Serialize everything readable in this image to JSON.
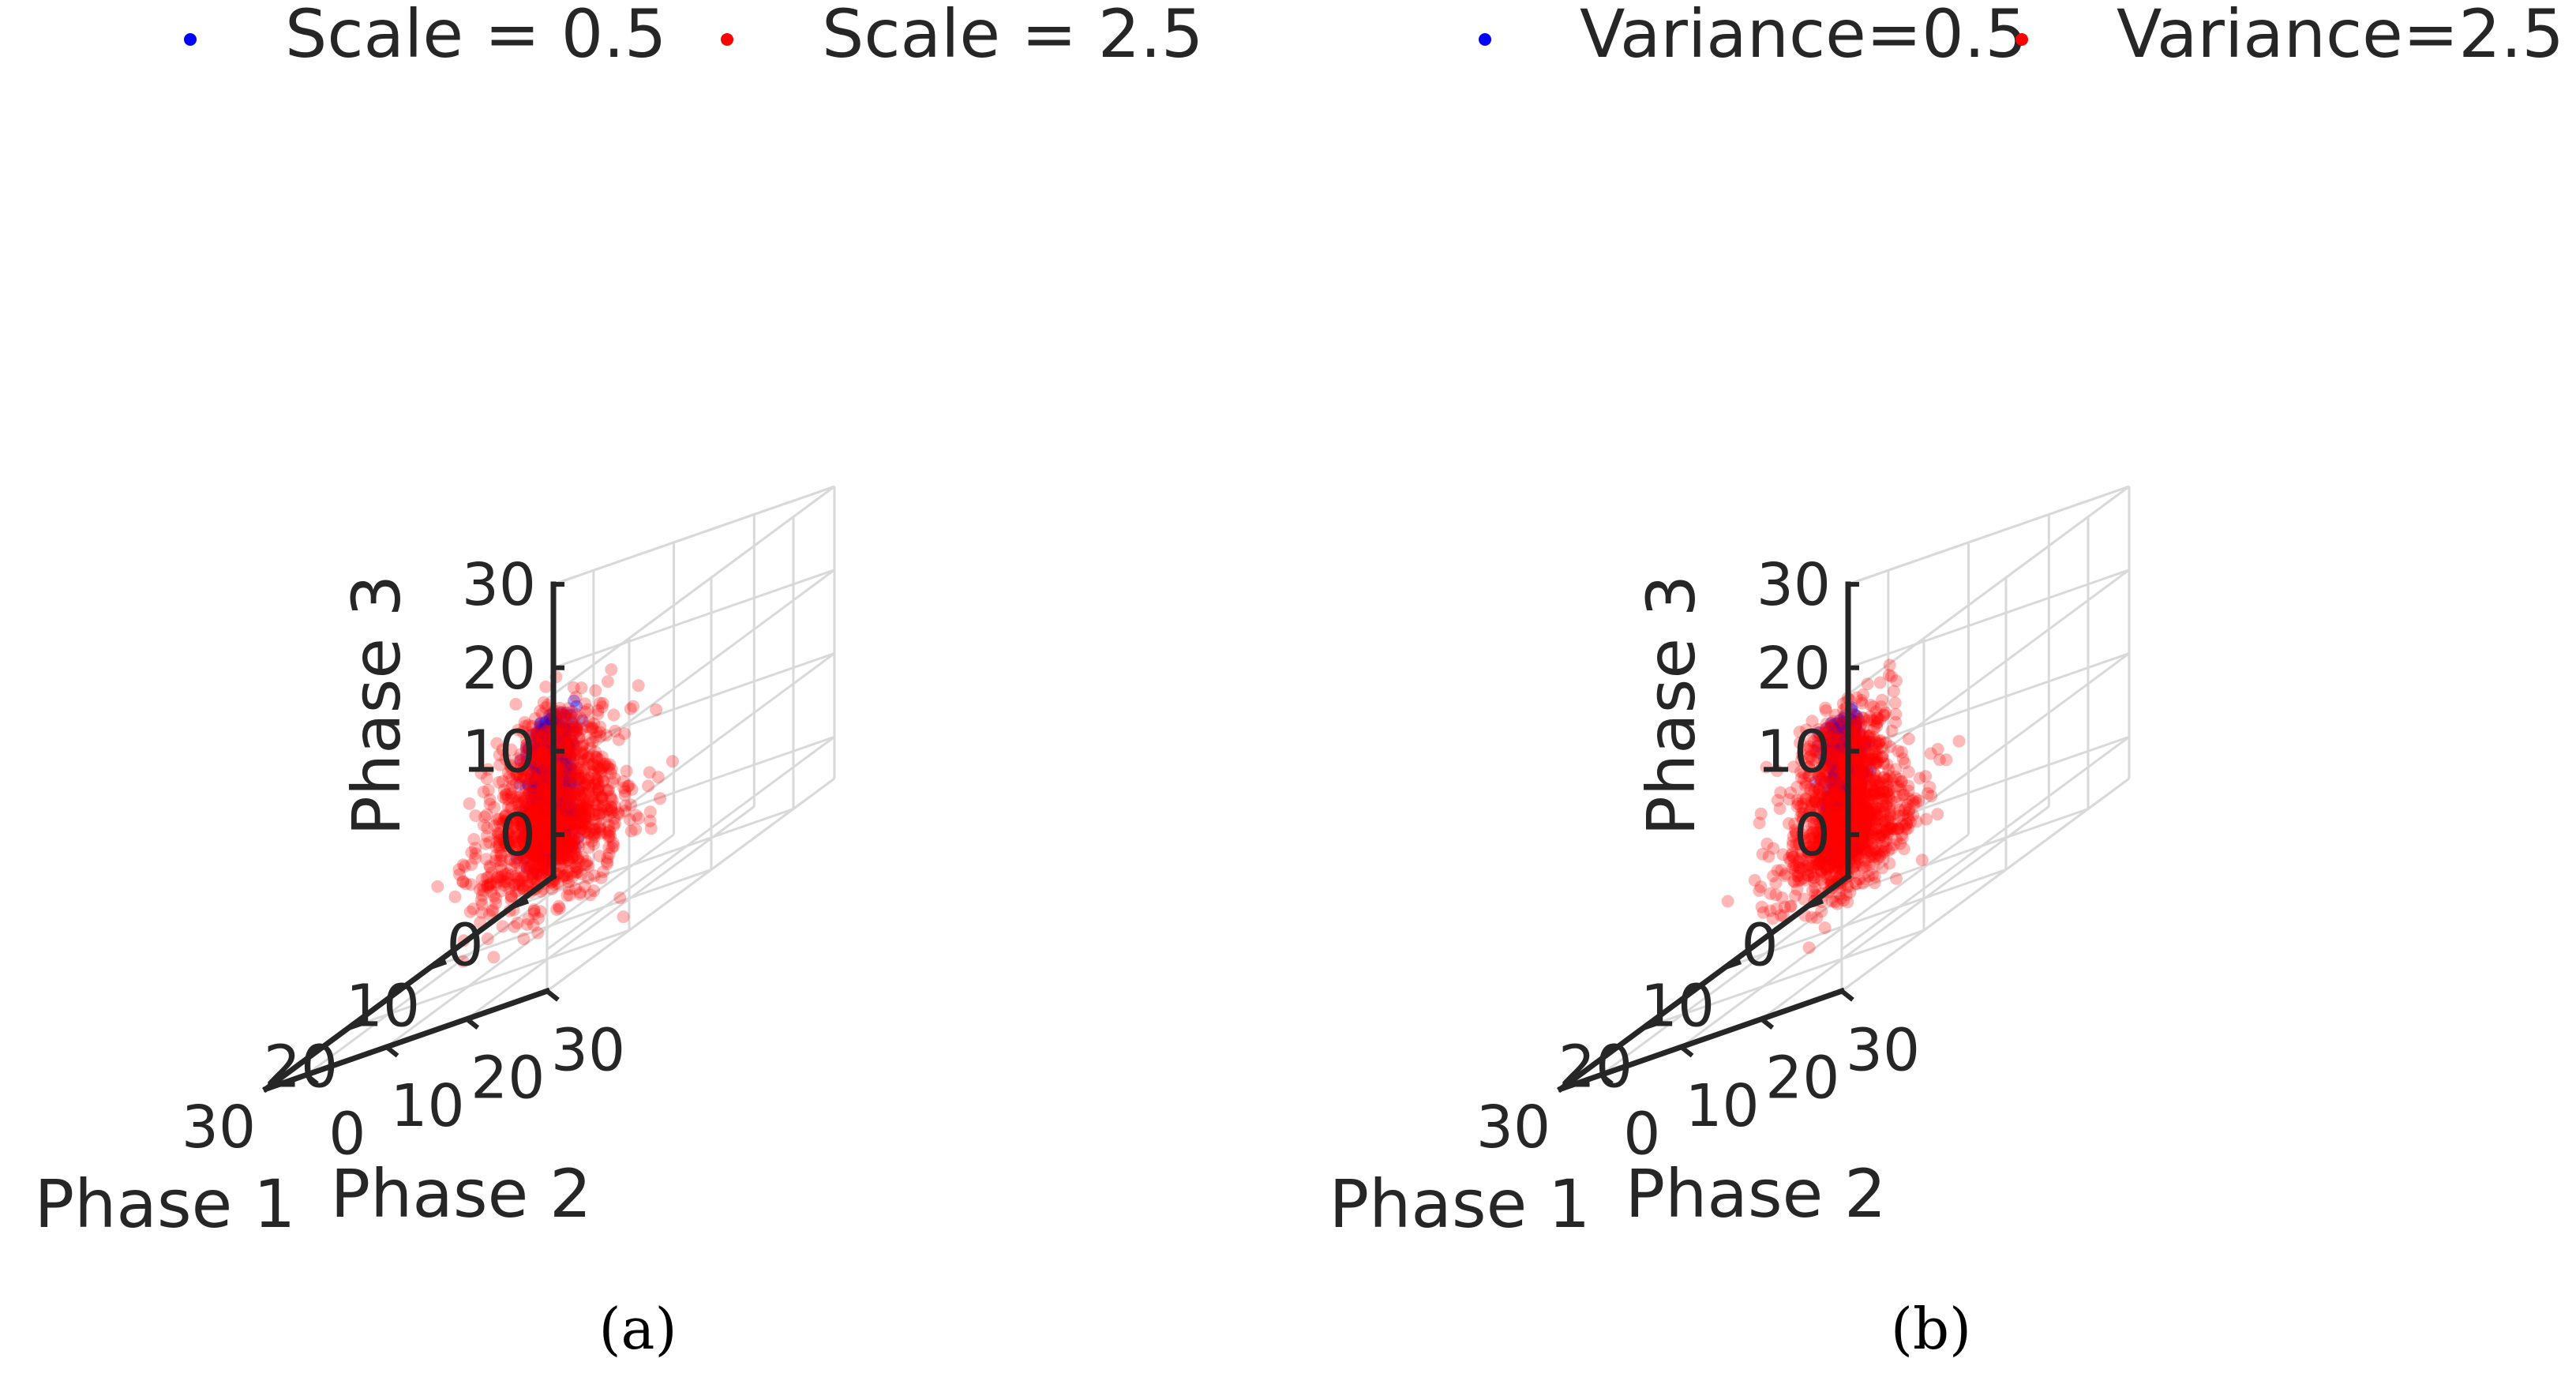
{
  "figure": {
    "captions": [
      "(a)",
      "(b)"
    ]
  },
  "chart_data": [
    {
      "type": "scatter",
      "subtype": "3d",
      "panel_label": "(a)",
      "title": "",
      "xlabel": "Phase 1",
      "ylabel": "Phase 2",
      "zlabel": "Phase 3",
      "xticks": [
        0,
        10,
        20,
        30
      ],
      "yticks": [
        0,
        10,
        20,
        30
      ],
      "zticks": [
        0,
        10,
        20,
        30
      ],
      "xlim": [
        -5,
        30
      ],
      "ylim": [
        -5,
        30
      ],
      "zlim": [
        -5,
        30
      ],
      "grid": true,
      "legend_position": "top",
      "series": [
        {
          "name": "Scale = 0.5",
          "color": "#0000ff",
          "distribution": "points clustered tightly along the diagonal from about (0,0,0) to about (25,25,25)",
          "diagonal_range": [
            0,
            25
          ],
          "spread_sd": 0.9
        },
        {
          "name": "Scale = 2.5",
          "color": "#ff0000",
          "distribution": "dense cloud near the origin spreading widely along the diagonal to about (25,25,25)",
          "diagonal_range": [
            0,
            25
          ],
          "spread_sd": 3.0
        }
      ]
    },
    {
      "type": "scatter",
      "subtype": "3d",
      "panel_label": "(b)",
      "title": "",
      "xlabel": "Phase 1",
      "ylabel": "Phase 2",
      "zlabel": "Phase 3",
      "xticks": [
        0,
        10,
        20,
        30
      ],
      "yticks": [
        0,
        10,
        20,
        30
      ],
      "zticks": [
        0,
        10,
        20,
        30
      ],
      "xlim": [
        -5,
        30
      ],
      "ylim": [
        -5,
        30
      ],
      "zlim": [
        -5,
        30
      ],
      "grid": true,
      "legend_position": "top",
      "series": [
        {
          "name": "Variance=0.5",
          "color": "#0000ff",
          "distribution": "points clustered tightly along the diagonal from about (0,0,0) to about (25,25,25)",
          "diagonal_range": [
            0,
            25
          ],
          "spread_sd": 0.7
        },
        {
          "name": "Variance=2.5",
          "color": "#ff0000",
          "distribution": "dense cloud near the origin spreading along the diagonal to about (25,25,25)",
          "diagonal_range": [
            0,
            25
          ],
          "spread_sd": 2.6
        }
      ]
    }
  ]
}
